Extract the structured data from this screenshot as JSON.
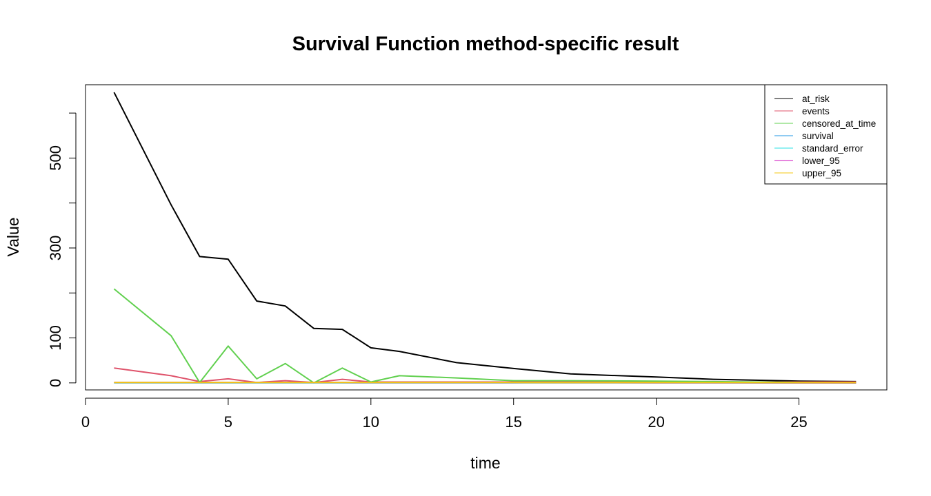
{
  "chart_data": {
    "type": "line",
    "title": "Survival Function method-specific result",
    "xlabel": "time",
    "ylabel": "Value",
    "xlim": [
      0,
      27
    ],
    "ylim": [
      0,
      650
    ],
    "x_ticks": [
      0,
      5,
      10,
      15,
      20,
      25
    ],
    "y_ticks": [
      0,
      100,
      300,
      500
    ],
    "grid": false,
    "legend_position": "top-right",
    "x": [
      1,
      3,
      4,
      5,
      6,
      7,
      8,
      9,
      10,
      11,
      13,
      15,
      17,
      20,
      22,
      25,
      27
    ],
    "series": [
      {
        "name": "at_risk",
        "color": "#000000",
        "values": [
          646,
          396,
          281,
          275,
          182,
          171,
          121,
          119,
          78,
          70,
          45,
          32,
          20,
          13,
          8,
          4,
          3
        ]
      },
      {
        "name": "events",
        "color": "#DF536B",
        "values": [
          33,
          16,
          3,
          9,
          1,
          5,
          1,
          8,
          2,
          2,
          2,
          2,
          2,
          2,
          2,
          2,
          2
        ]
      },
      {
        "name": "censored_at_time",
        "color": "#61D04F",
        "values": [
          209,
          105,
          1,
          82,
          9,
          43,
          0,
          33,
          2,
          16,
          11,
          5,
          5,
          4,
          3,
          1,
          0
        ]
      },
      {
        "name": "survival",
        "color": "#2297E6",
        "values": [
          0.95,
          0.91,
          0.9,
          0.87,
          0.86,
          0.84,
          0.83,
          0.77,
          0.75,
          0.73,
          0.69,
          0.64,
          0.59,
          0.5,
          0.43,
          0.33,
          0.28
        ]
      },
      {
        "name": "standard_error",
        "color": "#28E2E5",
        "values": [
          0.01,
          0.01,
          0.01,
          0.02,
          0.02,
          0.02,
          0.02,
          0.02,
          0.02,
          0.03,
          0.03,
          0.04,
          0.05,
          0.06,
          0.08,
          0.1,
          0.12
        ]
      },
      {
        "name": "lower_95",
        "color": "#CD0BBC",
        "values": [
          0.93,
          0.88,
          0.87,
          0.84,
          0.82,
          0.8,
          0.79,
          0.73,
          0.7,
          0.68,
          0.63,
          0.57,
          0.5,
          0.4,
          0.3,
          0.18,
          0.1
        ]
      },
      {
        "name": "upper_95",
        "color": "#F5C710",
        "values": [
          0.97,
          0.94,
          0.93,
          0.9,
          0.9,
          0.88,
          0.87,
          0.82,
          0.8,
          0.79,
          0.76,
          0.72,
          0.68,
          0.62,
          0.58,
          0.52,
          0.5
        ]
      }
    ]
  }
}
